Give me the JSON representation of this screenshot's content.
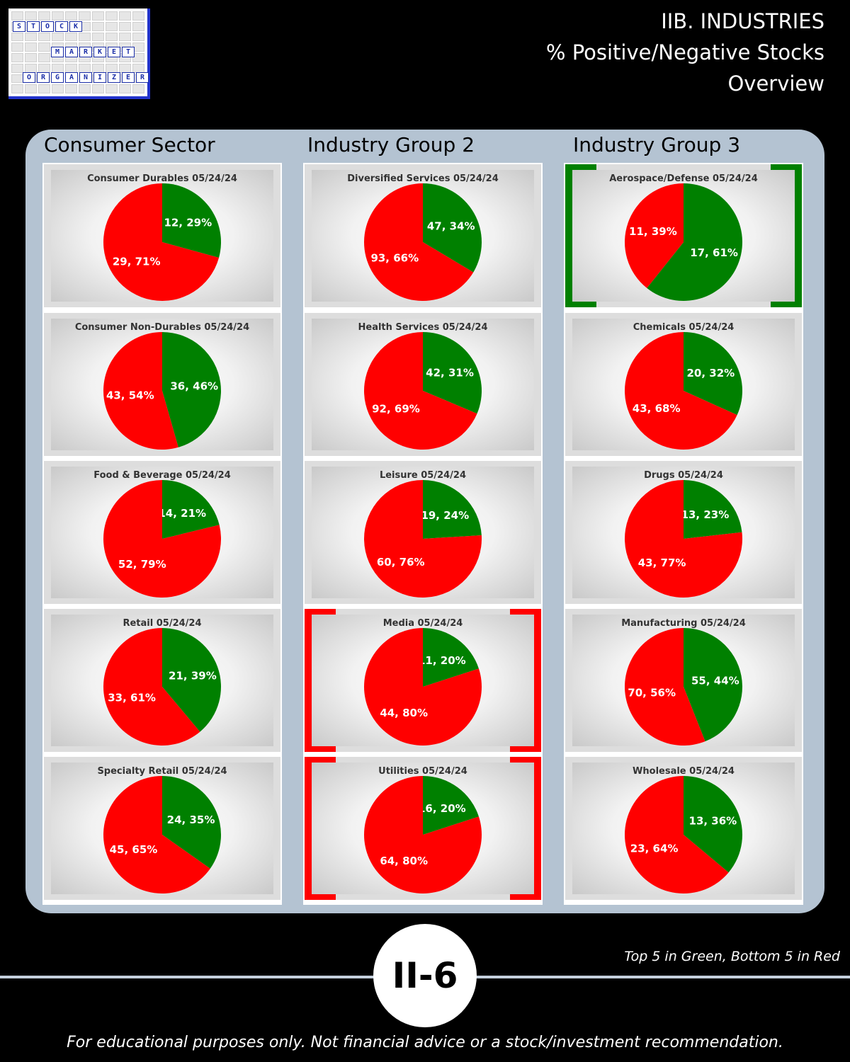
{
  "logo": {
    "words": [
      "STOCK",
      "MARKET",
      "ORGANIZER"
    ]
  },
  "header": {
    "line1": "IIB. INDUSTRIES",
    "line2": "% Positive/Negative Stocks",
    "line3": "Overview"
  },
  "columns": [
    "Consumer Sector",
    "Industry Group 2",
    "Industry Group 3"
  ],
  "colors": {
    "positive": "#008000",
    "negative": "#ff0000",
    "panel": "#b4c3d2"
  },
  "chart_data": [
    {
      "type": "pie",
      "title": "Consumer Durables 05/24/24",
      "column": 0,
      "row": 0,
      "highlight": "",
      "slices": [
        {
          "label": "12, 29%",
          "value": 12,
          "percent": 29,
          "color": "#008000"
        },
        {
          "label": "29, 71%",
          "value": 29,
          "percent": 71,
          "color": "#ff0000"
        }
      ]
    },
    {
      "type": "pie",
      "title": "Consumer Non-Durables 05/24/24",
      "column": 0,
      "row": 1,
      "highlight": "",
      "slices": [
        {
          "label": "36, 46%",
          "value": 36,
          "percent": 46,
          "color": "#008000"
        },
        {
          "label": "43, 54%",
          "value": 43,
          "percent": 54,
          "color": "#ff0000"
        }
      ]
    },
    {
      "type": "pie",
      "title": "Food & Beverage 05/24/24",
      "column": 0,
      "row": 2,
      "highlight": "",
      "slices": [
        {
          "label": "14, 21%",
          "value": 14,
          "percent": 21,
          "color": "#008000"
        },
        {
          "label": "52, 79%",
          "value": 52,
          "percent": 79,
          "color": "#ff0000"
        }
      ]
    },
    {
      "type": "pie",
      "title": "Retail 05/24/24",
      "column": 0,
      "row": 3,
      "highlight": "",
      "slices": [
        {
          "label": "21, 39%",
          "value": 21,
          "percent": 39,
          "color": "#008000"
        },
        {
          "label": "33, 61%",
          "value": 33,
          "percent": 61,
          "color": "#ff0000"
        }
      ]
    },
    {
      "type": "pie",
      "title": "Specialty Retail 05/24/24",
      "column": 0,
      "row": 4,
      "highlight": "",
      "slices": [
        {
          "label": "24, 35%",
          "value": 24,
          "percent": 35,
          "color": "#008000"
        },
        {
          "label": "45, 65%",
          "value": 45,
          "percent": 65,
          "color": "#ff0000"
        }
      ]
    },
    {
      "type": "pie",
      "title": "Diversified Services 05/24/24",
      "column": 1,
      "row": 0,
      "highlight": "",
      "slices": [
        {
          "label": "47, 34%",
          "value": 47,
          "percent": 34,
          "color": "#008000"
        },
        {
          "label": "93, 66%",
          "value": 93,
          "percent": 66,
          "color": "#ff0000"
        }
      ]
    },
    {
      "type": "pie",
      "title": "Health Services 05/24/24",
      "column": 1,
      "row": 1,
      "highlight": "",
      "slices": [
        {
          "label": "42, 31%",
          "value": 42,
          "percent": 31,
          "color": "#008000"
        },
        {
          "label": "92, 69%",
          "value": 92,
          "percent": 69,
          "color": "#ff0000"
        }
      ]
    },
    {
      "type": "pie",
      "title": "Leisure 05/24/24",
      "column": 1,
      "row": 2,
      "highlight": "",
      "slices": [
        {
          "label": "19, 24%",
          "value": 19,
          "percent": 24,
          "color": "#008000"
        },
        {
          "label": "60, 76%",
          "value": 60,
          "percent": 76,
          "color": "#ff0000"
        }
      ]
    },
    {
      "type": "pie",
      "title": "Media 05/24/24",
      "column": 1,
      "row": 3,
      "highlight": "bottom5",
      "slices": [
        {
          "label": "11, 20%",
          "value": 11,
          "percent": 20,
          "color": "#008000"
        },
        {
          "label": "44, 80%",
          "value": 44,
          "percent": 80,
          "color": "#ff0000"
        }
      ]
    },
    {
      "type": "pie",
      "title": "Utilities 05/24/24",
      "column": 1,
      "row": 4,
      "highlight": "bottom5",
      "slices": [
        {
          "label": "16, 20%",
          "value": 16,
          "percent": 20,
          "color": "#008000"
        },
        {
          "label": "64, 80%",
          "value": 64,
          "percent": 80,
          "color": "#ff0000"
        }
      ]
    },
    {
      "type": "pie",
      "title": "Aerospace/Defense 05/24/24",
      "column": 2,
      "row": 0,
      "highlight": "top5",
      "slices": [
        {
          "label": "17, 61%",
          "value": 17,
          "percent": 61,
          "color": "#008000"
        },
        {
          "label": "11, 39%",
          "value": 11,
          "percent": 39,
          "color": "#ff0000"
        }
      ]
    },
    {
      "type": "pie",
      "title": "Chemicals 05/24/24",
      "column": 2,
      "row": 1,
      "highlight": "",
      "slices": [
        {
          "label": "20, 32%",
          "value": 20,
          "percent": 32,
          "color": "#008000"
        },
        {
          "label": "43, 68%",
          "value": 43,
          "percent": 68,
          "color": "#ff0000"
        }
      ]
    },
    {
      "type": "pie",
      "title": "Drugs 05/24/24",
      "column": 2,
      "row": 2,
      "highlight": "",
      "slices": [
        {
          "label": "13, 23%",
          "value": 13,
          "percent": 23,
          "color": "#008000"
        },
        {
          "label": "43, 77%",
          "value": 43,
          "percent": 77,
          "color": "#ff0000"
        }
      ]
    },
    {
      "type": "pie",
      "title": "Manufacturing 05/24/24",
      "column": 2,
      "row": 3,
      "highlight": "",
      "slices": [
        {
          "label": "55, 44%",
          "value": 55,
          "percent": 44,
          "color": "#008000"
        },
        {
          "label": "70, 56%",
          "value": 70,
          "percent": 56,
          "color": "#ff0000"
        }
      ]
    },
    {
      "type": "pie",
      "title": "Wholesale 05/24/24",
      "column": 2,
      "row": 4,
      "highlight": "",
      "slices": [
        {
          "label": "13, 36%",
          "value": 13,
          "percent": 36,
          "color": "#008000"
        },
        {
          "label": "23, 64%",
          "value": 23,
          "percent": 64,
          "color": "#ff0000"
        }
      ]
    }
  ],
  "footer": {
    "legend_note": "Top 5 in Green, Bottom 5 in Red",
    "page_number": "II-6",
    "disclaimer": "For educational purposes only. Not financial advice or a stock/investment recommendation."
  }
}
